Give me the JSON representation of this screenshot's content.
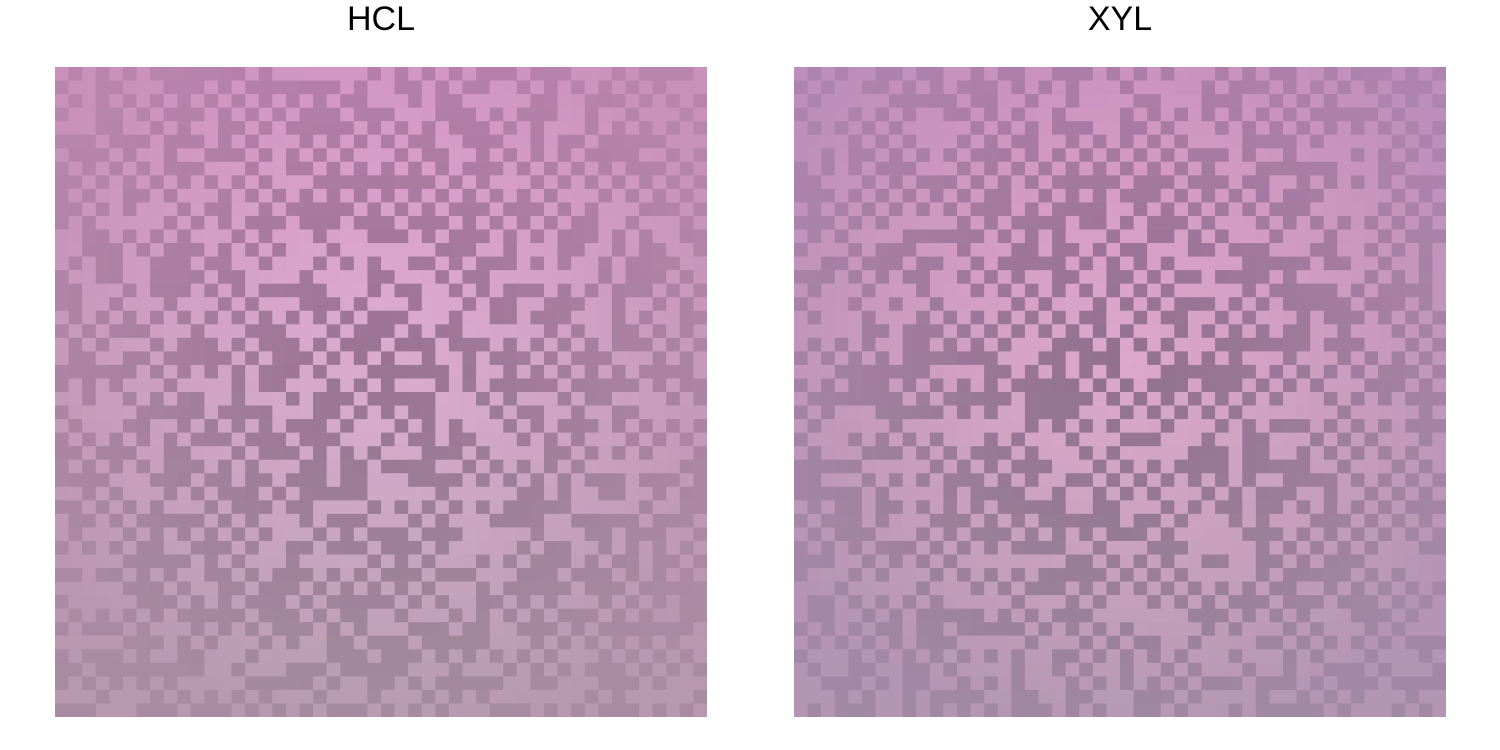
{
  "panels": [
    {
      "id": "hcl",
      "title": "HCL",
      "grid": [
        48,
        48
      ],
      "palette": {
        "light_top": "#e7a6d8",
        "light_bottom": "#cdb3c6",
        "dark_top": "#a56f9d",
        "dark_bottom": "#8c7888",
        "edge_tint": "#b58aa8"
      }
    },
    {
      "id": "xyl",
      "title": "XYL",
      "grid": [
        48,
        48
      ],
      "palette": {
        "light_top": "#e3a1d0",
        "light_bottom": "#d3b0c6",
        "dark_top": "#9c6e98",
        "dark_bottom": "#867386",
        "edge_tint": "#a58ab8"
      }
    }
  ]
}
